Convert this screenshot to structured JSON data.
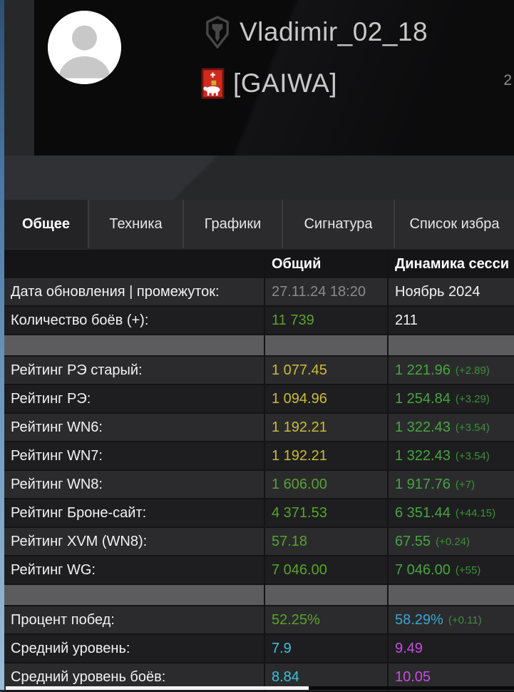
{
  "header": {
    "player_name": "Vladimir_02_18",
    "clan_tag": "[GAIWA]",
    "right_edge_text": "2"
  },
  "tabs": [
    {
      "label": "Общее",
      "active": true
    },
    {
      "label": "Техника",
      "active": false
    },
    {
      "label": "Графики",
      "active": false
    },
    {
      "label": "Сигнатура",
      "active": false
    },
    {
      "label": "Список избра",
      "active": false
    }
  ],
  "table": {
    "columns": [
      "",
      "Общий",
      "Динамика сесси"
    ],
    "rows": [
      {
        "label": "Дата обновления | промежуток:",
        "overall": "27.11.24 18:20",
        "overall_color": "muted",
        "session": "Ноябрь 2024",
        "session_color": "white"
      },
      {
        "label": "Количество боёв (+):",
        "overall": "11 739",
        "overall_color": "green",
        "session": "211",
        "session_color": "white"
      },
      {
        "type": "spacer"
      },
      {
        "label": "Рейтинг РЭ старый:",
        "overall": "1 077.45",
        "overall_color": "yellow",
        "session": "1 221.96",
        "session_color": "session_green",
        "delta": "(+2.89)",
        "delta_color": "delta_green"
      },
      {
        "label": "Рейтинг РЭ:",
        "overall": "1 094.96",
        "overall_color": "yellow",
        "session": "1 254.84",
        "session_color": "session_green",
        "delta": "(+3.29)",
        "delta_color": "delta_green"
      },
      {
        "label": "Рейтинг WN6:",
        "overall": "1 192.21",
        "overall_color": "yellow",
        "session": "1 322.43",
        "session_color": "session_green",
        "delta": "(+3.54)",
        "delta_color": "delta_green"
      },
      {
        "label": "Рейтинг WN7:",
        "overall": "1 192.21",
        "overall_color": "yellow",
        "session": "1 322.43",
        "session_color": "session_green",
        "delta": "(+3.54)",
        "delta_color": "delta_green"
      },
      {
        "label": "Рейтинг WN8:",
        "overall": "1 606.00",
        "overall_color": "green",
        "session": "1 917.76",
        "session_color": "session_green",
        "delta": "(+7)",
        "delta_color": "delta_green"
      },
      {
        "label": "Рейтинг Броне-сайт:",
        "overall": "4 371.53",
        "overall_color": "green",
        "session": "6 351.44",
        "session_color": "session_green",
        "delta": "(+44.15)",
        "delta_color": "delta_green"
      },
      {
        "label": "Рейтинг XVM (WN8):",
        "overall": "57.18",
        "overall_color": "green",
        "session": "67.55",
        "session_color": "session_green",
        "delta": "(+0.24)",
        "delta_color": "delta_green"
      },
      {
        "label": "Рейтинг WG:",
        "overall": "7 046.00",
        "overall_color": "green",
        "session": "7 046.00",
        "session_color": "session_green",
        "delta": "(+55)",
        "delta_color": "delta_green"
      },
      {
        "type": "spacer"
      },
      {
        "label": "Процент побед:",
        "overall": "52.25%",
        "overall_color": "green",
        "session": "58.29%",
        "session_color": "cyan_session",
        "delta": "(+0.11)",
        "delta_color": "delta_green"
      },
      {
        "label": "Средний уровень:",
        "overall": "7.9",
        "overall_color": "cyan",
        "session": "9.49",
        "session_color": "magenta"
      },
      {
        "label": "Средний уровень боёв:",
        "overall": "8.84",
        "overall_color": "cyan",
        "session": "10.05",
        "session_color": "magenta"
      }
    ]
  },
  "colors": {
    "muted": "#8a8a8a",
    "white": "#f2f2f2",
    "green": "#5aa22c",
    "yellow": "#c9bd38",
    "session_green": "#48a441",
    "delta_green": "#3a9038",
    "cyan": "#3fc2da",
    "cyan_session": "#3ba6d2",
    "magenta": "#c44fe2"
  }
}
